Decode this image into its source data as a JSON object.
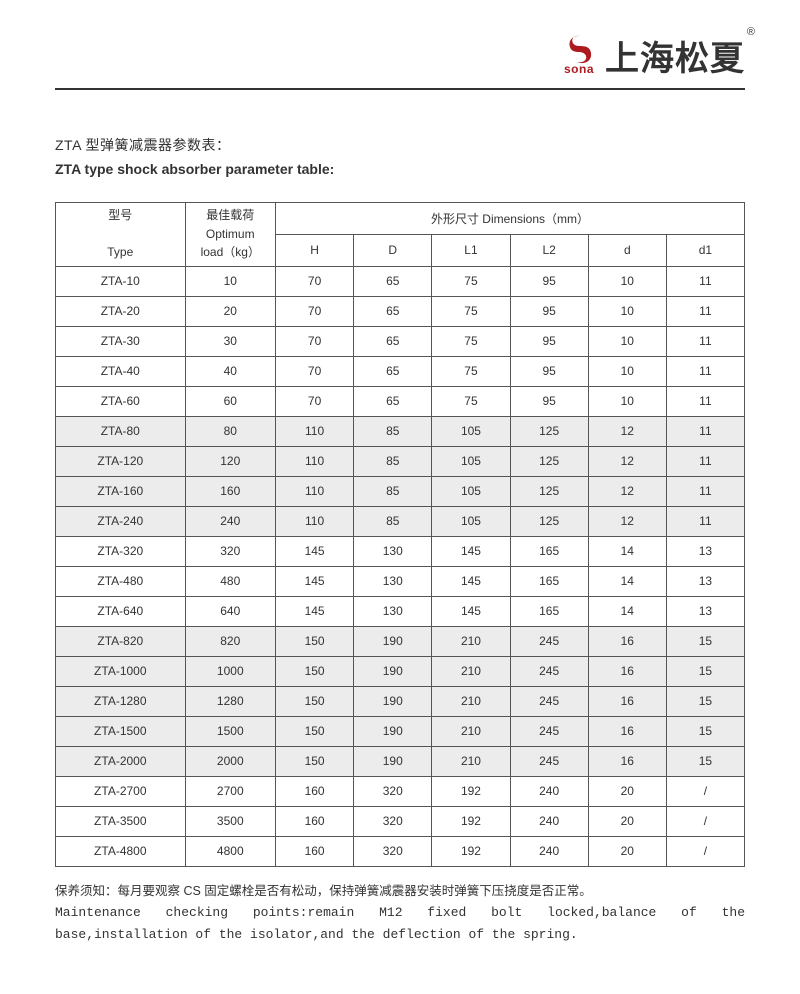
{
  "header": {
    "logo_small": "sona",
    "brand": "上海松夏",
    "tm": "®"
  },
  "title_cn": "ZTA 型弹簧减震器参数表：",
  "title_en": "ZTA type shock absorber parameter table:",
  "table": {
    "head": {
      "type_cn": "型号",
      "type_en": "Type",
      "load_cn": "最佳载荷",
      "load_en_1": "Optimum",
      "load_en_2": "load（kg）",
      "dims_label": "外形尺寸 Dimensions（mm）",
      "cols": [
        "H",
        "D",
        "L1",
        "L2",
        "d",
        "d1"
      ]
    },
    "rows": [
      {
        "shade": false,
        "cells": [
          "ZTA-10",
          "10",
          "70",
          "65",
          "75",
          "95",
          "10",
          "11"
        ]
      },
      {
        "shade": false,
        "cells": [
          "ZTA-20",
          "20",
          "70",
          "65",
          "75",
          "95",
          "10",
          "11"
        ]
      },
      {
        "shade": false,
        "cells": [
          "ZTA-30",
          "30",
          "70",
          "65",
          "75",
          "95",
          "10",
          "11"
        ]
      },
      {
        "shade": false,
        "cells": [
          "ZTA-40",
          "40",
          "70",
          "65",
          "75",
          "95",
          "10",
          "11"
        ]
      },
      {
        "shade": false,
        "cells": [
          "ZTA-60",
          "60",
          "70",
          "65",
          "75",
          "95",
          "10",
          "11"
        ]
      },
      {
        "shade": true,
        "cells": [
          "ZTA-80",
          "80",
          "110",
          "85",
          "105",
          "125",
          "12",
          "11"
        ]
      },
      {
        "shade": true,
        "cells": [
          "ZTA-120",
          "120",
          "110",
          "85",
          "105",
          "125",
          "12",
          "11"
        ]
      },
      {
        "shade": true,
        "cells": [
          "ZTA-160",
          "160",
          "110",
          "85",
          "105",
          "125",
          "12",
          "11"
        ]
      },
      {
        "shade": true,
        "cells": [
          "ZTA-240",
          "240",
          "110",
          "85",
          "105",
          "125",
          "12",
          "11"
        ]
      },
      {
        "shade": false,
        "cells": [
          "ZTA-320",
          "320",
          "145",
          "130",
          "145",
          "165",
          "14",
          "13"
        ]
      },
      {
        "shade": false,
        "cells": [
          "ZTA-480",
          "480",
          "145",
          "130",
          "145",
          "165",
          "14",
          "13"
        ]
      },
      {
        "shade": false,
        "cells": [
          "ZTA-640",
          "640",
          "145",
          "130",
          "145",
          "165",
          "14",
          "13"
        ]
      },
      {
        "shade": true,
        "cells": [
          "ZTA-820",
          "820",
          "150",
          "190",
          "210",
          "245",
          "16",
          "15"
        ]
      },
      {
        "shade": true,
        "cells": [
          "ZTA-1000",
          "1000",
          "150",
          "190",
          "210",
          "245",
          "16",
          "15"
        ]
      },
      {
        "shade": true,
        "cells": [
          "ZTA-1280",
          "1280",
          "150",
          "190",
          "210",
          "245",
          "16",
          "15"
        ]
      },
      {
        "shade": true,
        "cells": [
          "ZTA-1500",
          "1500",
          "150",
          "190",
          "210",
          "245",
          "16",
          "15"
        ]
      },
      {
        "shade": true,
        "cells": [
          "ZTA-2000",
          "2000",
          "150",
          "190",
          "210",
          "245",
          "16",
          "15"
        ]
      },
      {
        "shade": false,
        "cells": [
          "ZTA-2700",
          "2700",
          "160",
          "320",
          "192",
          "240",
          "20",
          "/"
        ]
      },
      {
        "shade": false,
        "cells": [
          "ZTA-3500",
          "3500",
          "160",
          "320",
          "192",
          "240",
          "20",
          "/"
        ]
      },
      {
        "shade": false,
        "cells": [
          "ZTA-4800",
          "4800",
          "160",
          "320",
          "192",
          "240",
          "20",
          "/"
        ]
      }
    ]
  },
  "notes": {
    "cn": "保养须知：每月要观察 CS 固定螺栓是否有松动，保持弹簧减震器安装时弹簧下压挠度是否正常。",
    "en1": "Maintenance checking points:remain M12 fixed bolt locked,balance of the",
    "en2": "base,installation of the isolator,and the deflection of the spring."
  },
  "logo_color": "#ad1b1f"
}
